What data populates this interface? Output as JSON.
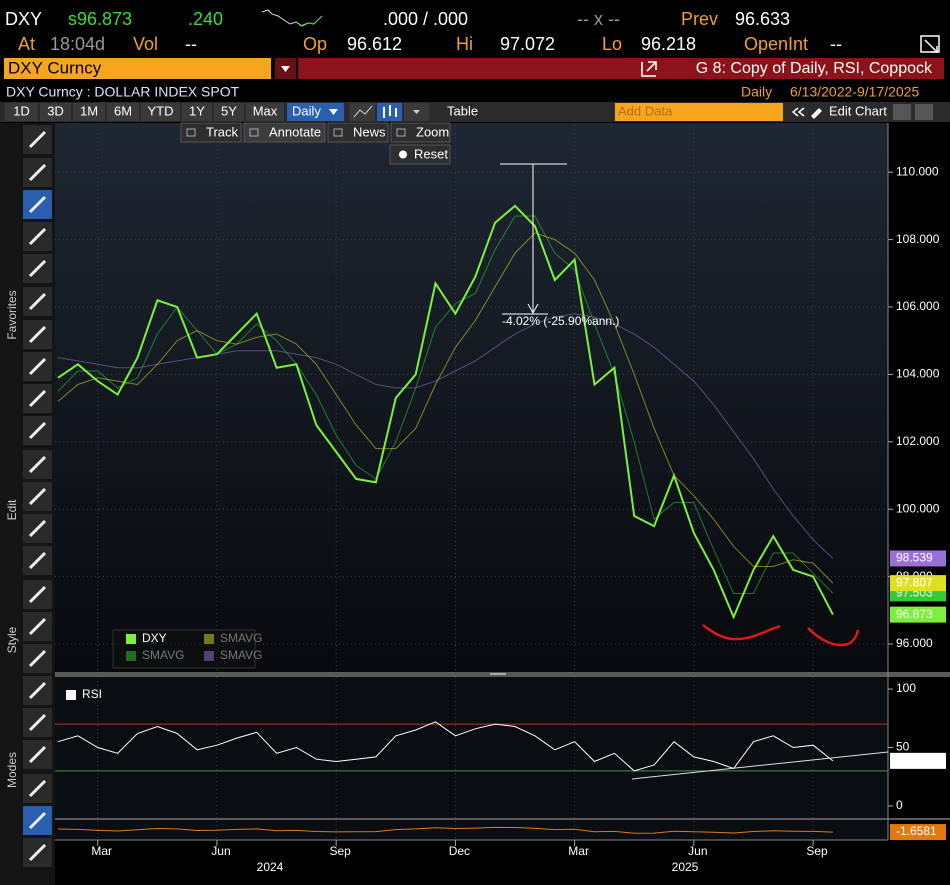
{
  "header": {
    "ticker": "DXY",
    "price": "s96.873",
    "change": ".240",
    "bid_ask": ".000 / .000",
    "size": "-- x --",
    "prev_label": "Prev",
    "prev": "96.633",
    "time_label": "At",
    "time": "18:04d",
    "vol_label": "Vol",
    "vol": "--",
    "open_label": "Op",
    "open": "96.612",
    "high_label": "Hi",
    "high": "97.072",
    "low_label": "Lo",
    "low": "96.218",
    "oi_label": "OpenInt",
    "oi": "--"
  },
  "security_bar": {
    "security": "DXY Curncy",
    "title": "G 8: Copy of Daily, RSI, Coppock"
  },
  "info_bar": {
    "description": "DXY Curncy : DOLLAR INDEX SPOT",
    "frequency": "Daily",
    "date_range": "6/13/2022-9/17/2025"
  },
  "toolbar": {
    "periods": [
      "1D",
      "3D",
      "1M",
      "6M",
      "YTD",
      "1Y",
      "5Y",
      "Max"
    ],
    "frequency": "Daily",
    "table": "Table",
    "add_data": "Add Data",
    "edit_chart": "Edit Chart"
  },
  "chart_tools": [
    "Track",
    "Annotate",
    "News",
    "Zoom"
  ],
  "reset": "Reset",
  "sidebar": [
    "Favorites",
    "Edit",
    "Style",
    "Modes"
  ],
  "chart_data": [
    {
      "type": "line",
      "categories": [
        null,
        null,
        "Mar",
        null,
        null,
        null,
        null,
        null,
        "Jun",
        null,
        null,
        null,
        null,
        null,
        "Sep",
        null,
        null,
        null,
        null,
        null,
        "Dec",
        null,
        null,
        null,
        null,
        null,
        "Mar",
        null,
        null,
        null,
        null,
        null,
        "Jun",
        null,
        null,
        null,
        null,
        null,
        "Sep",
        null
      ],
      "year_labels": [
        "2024",
        "2025"
      ],
      "annotation": "-4.02% (-25.90%ann.)",
      "ylim": [
        95.2,
        111.4
      ],
      "yticks": [
        {
          "value": 96,
          "label": "96.000"
        },
        {
          "value": 98,
          "label": "98.000"
        },
        {
          "value": 100,
          "label": "100.000"
        },
        {
          "value": 102,
          "label": "102.000"
        },
        {
          "value": 104,
          "label": "104.000"
        },
        {
          "value": 106,
          "label": "106.000"
        },
        {
          "value": 108,
          "label": "108.000"
        },
        {
          "value": 110,
          "label": "110.000"
        }
      ],
      "grid": true,
      "series": [
        {
          "name": "DXY",
          "color": "#7cf03c",
          "values": [
            103.9,
            104.3,
            103.8,
            103.4,
            104.5,
            106.2,
            106.0,
            104.5,
            104.6,
            105.2,
            105.8,
            104.2,
            104.3,
            102.5,
            101.7,
            100.9,
            100.8,
            103.3,
            104.0,
            106.7,
            105.8,
            106.9,
            108.5,
            109.0,
            108.4,
            106.8,
            107.4,
            103.7,
            104.2,
            99.8,
            99.5,
            101.0,
            99.3,
            98.2,
            96.8,
            98.2,
            99.2,
            98.2,
            98.0,
            96.873
          ]
        },
        {
          "name": "SMAVG",
          "color": "#e0e020",
          "values": [
            103.2,
            103.7,
            103.9,
            103.8,
            103.7,
            104.3,
            105.0,
            105.3,
            105.0,
            104.9,
            105.1,
            105.2,
            104.9,
            104.3,
            103.4,
            102.5,
            101.8,
            101.8,
            102.4,
            103.7,
            104.8,
            105.6,
            106.6,
            107.6,
            108.2,
            108.0,
            107.6,
            106.8,
            105.5,
            104.0,
            102.4,
            101.0,
            100.4,
            99.7,
            98.9,
            98.3,
            98.3,
            98.5,
            98.4,
            97.807
          ]
        },
        {
          "name": "SMAVG",
          "color": "#33cc33",
          "values": [
            103.5,
            104.1,
            104.1,
            103.6,
            103.9,
            105.2,
            106.0,
            105.3,
            104.6,
            104.9,
            105.5,
            105.0,
            104.3,
            103.4,
            102.2,
            101.3,
            100.9,
            102.0,
            103.6,
            105.4,
            106.1,
            106.4,
            107.7,
            108.7,
            108.7,
            107.6,
            107.1,
            105.5,
            104.0,
            102.0,
            99.7,
            100.2,
            100.2,
            98.8,
            97.5,
            97.5,
            98.7,
            98.7,
            98.1,
            97.503
          ]
        },
        {
          "name": "SMAVG",
          "color": "#9a70d8",
          "values": [
            104.5,
            104.4,
            104.3,
            104.2,
            104.2,
            104.3,
            104.4,
            104.5,
            104.6,
            104.7,
            104.7,
            104.7,
            104.6,
            104.5,
            104.3,
            104.0,
            103.7,
            103.6,
            103.6,
            103.8,
            104.1,
            104.4,
            104.8,
            105.2,
            105.5,
            105.7,
            105.8,
            105.7,
            105.5,
            105.2,
            104.8,
            104.3,
            103.8,
            103.1,
            102.3,
            101.5,
            100.6,
            99.8,
            99.1,
            98.539
          ]
        }
      ]
    },
    {
      "type": "line",
      "ylim": [
        -10.3,
        110.3
      ],
      "yticks": [
        0,
        50,
        100
      ],
      "levels": [
        {
          "value": 70,
          "color": "#c0302a"
        },
        {
          "value": 30,
          "color": "#3a9a3a"
        }
      ],
      "series": [
        {
          "name": "RSI",
          "color": "#ffffff",
          "values": [
            55,
            60,
            50,
            45,
            62,
            68,
            62,
            48,
            52,
            58,
            63,
            45,
            50,
            40,
            38,
            40,
            42,
            60,
            65,
            72,
            60,
            66,
            70,
            68,
            60,
            48,
            55,
            38,
            45,
            30,
            35,
            55,
            42,
            38,
            32,
            55,
            60,
            50,
            52,
            38.5662
          ]
        }
      ]
    },
    {
      "type": "line",
      "ylim": [
        -8,
        8
      ],
      "series": [
        {
          "color": "#e07a10",
          "values": [
            0.8,
            0.5,
            -0.3,
            -0.8,
            0.2,
            1.2,
            0.9,
            -0.4,
            -0.2,
            0.5,
            0.9,
            -0.6,
            -0.3,
            -1.2,
            -1.5,
            -1.4,
            -1.3,
            0.3,
            0.9,
            1.8,
            1.2,
            1.5,
            2.1,
            2.0,
            1.4,
            0.3,
            0.6,
            -1.4,
            -1.1,
            -2.6,
            -2.5,
            -1.0,
            -1.4,
            -1.8,
            -2.4,
            -1.2,
            -0.6,
            -1.0,
            -1.1,
            -1.6581
          ]
        }
      ]
    }
  ]
}
